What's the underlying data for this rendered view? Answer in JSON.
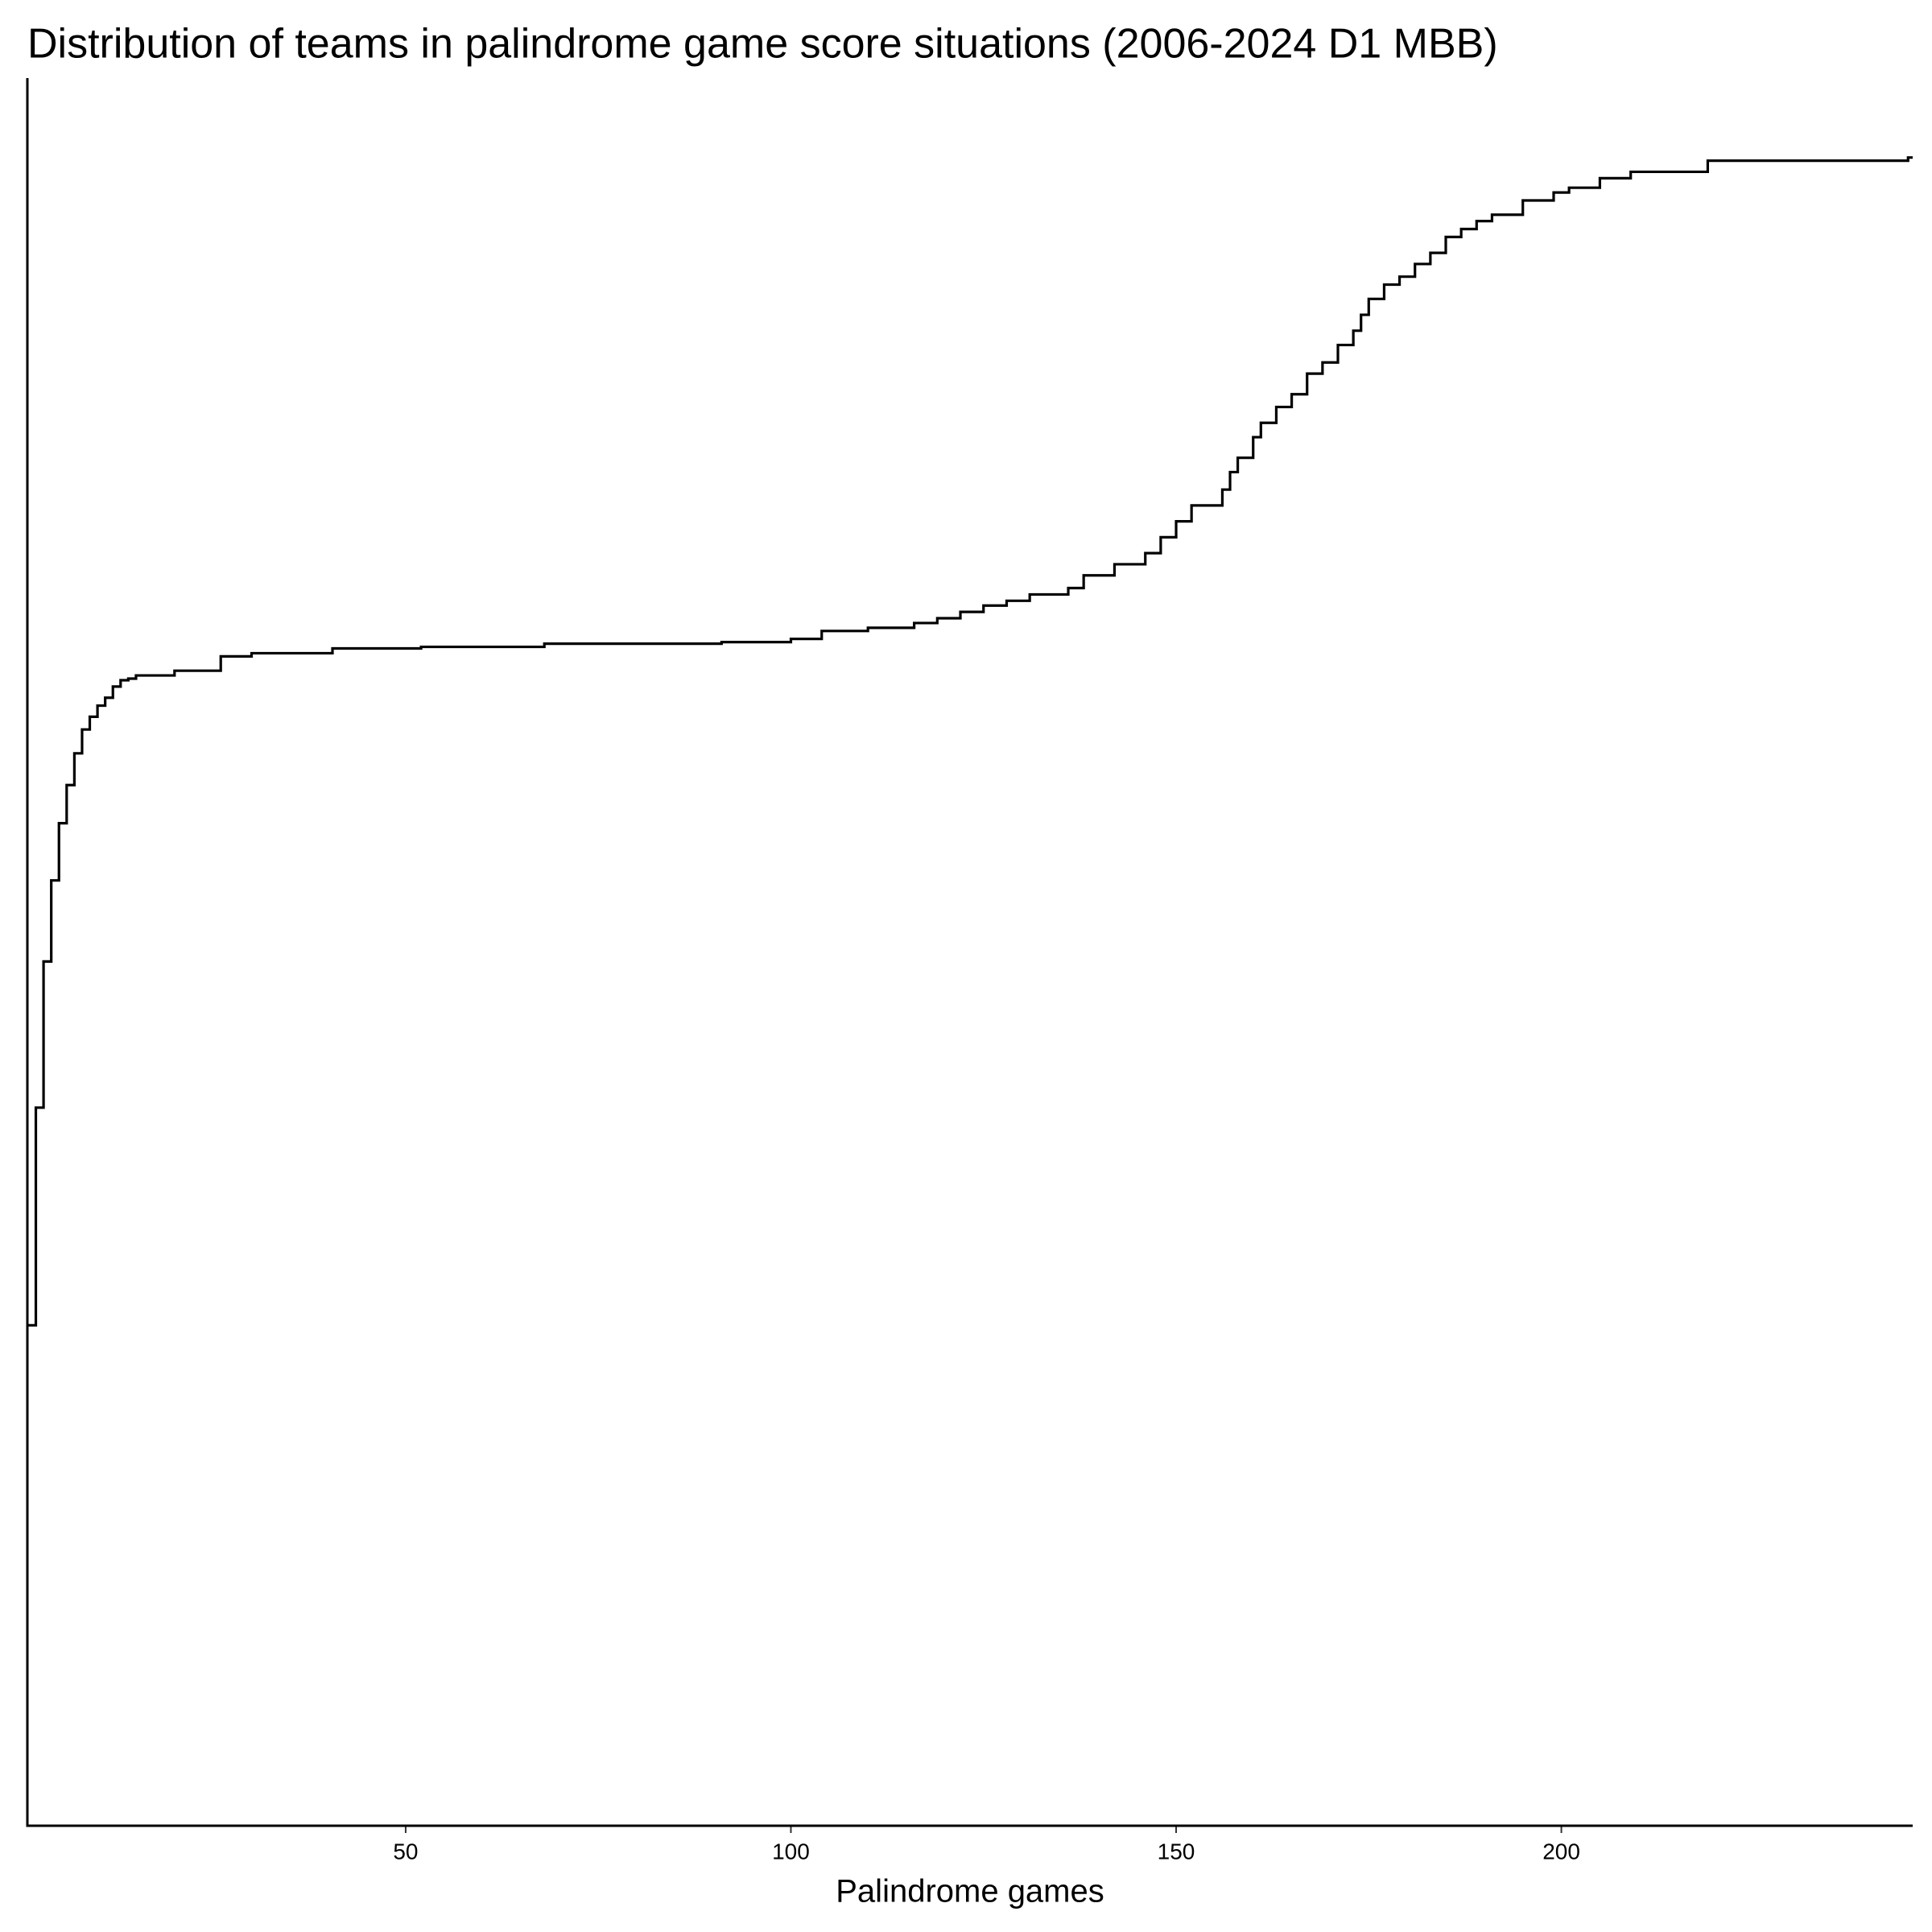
{
  "chart_data": {
    "type": "step",
    "title": "Distribution of teams in palindrome game score situations (2006-2024 D1 MBB)",
    "x_label": "Palindrome games",
    "color": "#000000",
    "x": [
      1,
      2,
      3,
      4,
      5,
      6,
      7,
      8,
      9,
      10,
      11,
      12,
      13,
      14,
      15,
      20,
      26,
      30,
      40.5,
      52,
      68,
      91,
      100,
      104,
      110,
      116,
      119,
      122,
      125,
      128,
      131,
      136,
      138,
      142,
      146,
      148,
      150,
      152,
      156,
      157,
      158,
      160,
      161,
      163,
      165,
      167,
      169,
      171,
      173,
      174,
      175,
      177,
      179,
      181,
      183,
      185,
      187,
      189,
      191,
      195,
      199,
      201,
      205,
      209,
      219,
      245
    ],
    "values": [
      0.265,
      0.402,
      0.494,
      0.545,
      0.581,
      0.605,
      0.625,
      0.64,
      0.648,
      0.655,
      0.66,
      0.667,
      0.671,
      0.672,
      0.674,
      0.677,
      0.686,
      0.688,
      0.691,
      0.692,
      0.694,
      0.695,
      0.697,
      0.702,
      0.704,
      0.707,
      0.71,
      0.714,
      0.718,
      0.721,
      0.725,
      0.729,
      0.737,
      0.744,
      0.751,
      0.761,
      0.771,
      0.781,
      0.791,
      0.802,
      0.811,
      0.824,
      0.833,
      0.843,
      0.851,
      0.864,
      0.871,
      0.882,
      0.891,
      0.901,
      0.911,
      0.92,
      0.925,
      0.933,
      0.94,
      0.95,
      0.955,
      0.96,
      0.964,
      0.973,
      0.978,
      0.981,
      0.987,
      0.991,
      0.998,
      1.0
    ],
    "xlim": [
      0.9,
      245.6
    ],
    "ylim": [
      -0.05,
      1.05
    ],
    "xticks": [
      50,
      100,
      150,
      200
    ],
    "grid": false
  }
}
